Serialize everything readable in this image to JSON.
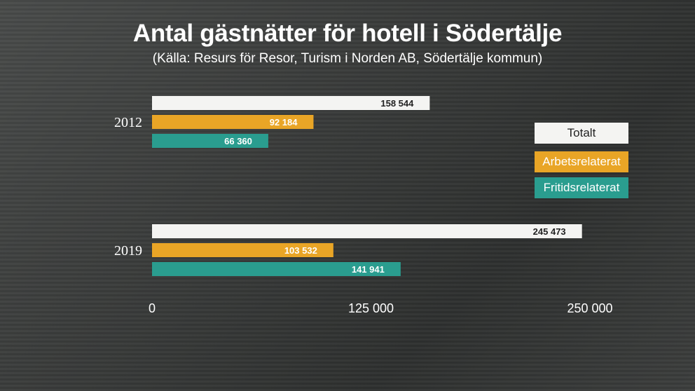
{
  "title": "Antal gästnätter för hotell i Södertälje",
  "subtitle": "(Källa: Resurs för Resor, Turism i Norden AB, Södertälje kommun)",
  "colors": {
    "totalt": "#f4f4f2",
    "arbetsrelaterat": "#e9a526",
    "fritidsrelaterat": "#2a9d8f",
    "text_dark": "#222222",
    "text_light": "#ffffff"
  },
  "legend": [
    {
      "label": "Totalt",
      "key": "totalt",
      "text_color": "#222222"
    },
    {
      "label": "Arbetsrelaterat",
      "key": "arbetsrelaterat",
      "text_color": "#ffffff"
    },
    {
      "label": "Fritidsrelaterat",
      "key": "fritidsrelaterat",
      "text_color": "#ffffff"
    }
  ],
  "chart_data": {
    "type": "bar",
    "orientation": "horizontal",
    "title": "Antal gästnätter för hotell i Södertälje",
    "subtitle": "(Källa: Resurs för Resor, Turism i Norden AB, Södertälje kommun)",
    "categories": [
      "2012",
      "2019"
    ],
    "series": [
      {
        "name": "Totalt",
        "values": [
          158544,
          245473
        ],
        "labels": [
          "158 544",
          "245 473"
        ]
      },
      {
        "name": "Arbetsrelaterat",
        "values": [
          92184,
          103532
        ],
        "labels": [
          "92 184",
          "103 532"
        ]
      },
      {
        "name": "Fritidsrelaterat",
        "values": [
          66360,
          141941
        ],
        "labels": [
          "66 360",
          "141 941"
        ]
      }
    ],
    "xlim": [
      0,
      250000
    ],
    "xticks": [
      0,
      125000,
      250000
    ],
    "xtick_labels": [
      "0",
      "125 000",
      "250 000"
    ],
    "grid": false,
    "legend_position": "right"
  }
}
